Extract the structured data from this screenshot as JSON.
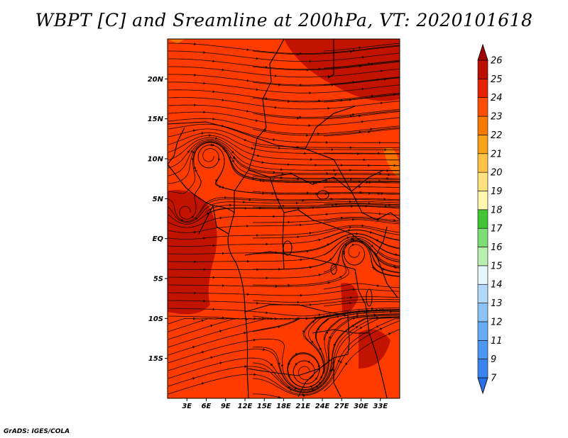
{
  "title": "WBPT [C] and Sreamline at 200hPa, VT: 2020101618",
  "footer": "GrADS: IGES/COLA",
  "map": {
    "lon_range": [
      0,
      36
    ],
    "lat_range": [
      -20,
      25
    ],
    "lat_ticks": [
      {
        "value": 20,
        "label": "20N"
      },
      {
        "value": 15,
        "label": "15N"
      },
      {
        "value": 10,
        "label": "10N"
      },
      {
        "value": 5,
        "label": "5N"
      },
      {
        "value": 0,
        "label": "EQ"
      },
      {
        "value": -5,
        "label": "5S"
      },
      {
        "value": -10,
        "label": "10S"
      },
      {
        "value": -15,
        "label": "15S"
      }
    ],
    "lon_ticks": [
      {
        "value": 3,
        "label": "3E"
      },
      {
        "value": 6,
        "label": "6E"
      },
      {
        "value": 9,
        "label": "9E"
      },
      {
        "value": 12,
        "label": "12E"
      },
      {
        "value": 15,
        "label": "15E"
      },
      {
        "value": 18,
        "label": "18E"
      },
      {
        "value": 21,
        "label": "21E"
      },
      {
        "value": 24,
        "label": "24E"
      },
      {
        "value": 27,
        "label": "27E"
      },
      {
        "value": 30,
        "label": "30E"
      },
      {
        "value": 33,
        "label": "33E"
      }
    ],
    "field_color": "#ff3b00",
    "line_color": "#1a0a00"
  },
  "colorbar": {
    "levels": [
      "7",
      "9",
      "11",
      "12",
      "13",
      "14",
      "15",
      "16",
      "17",
      "18",
      "19",
      "20",
      "21",
      "22",
      "23",
      "24",
      "25",
      "26"
    ],
    "colors": [
      "#2d6fe8",
      "#3a83ec",
      "#4d97f0",
      "#6aacf3",
      "#8cc2f6",
      "#b3d8fa",
      "#e6f6fb",
      "#b9efae",
      "#7fdd76",
      "#42c437",
      "#fff6b0",
      "#ffe27f",
      "#fcc248",
      "#f9a21b",
      "#f57a00",
      "#ff4e00",
      "#e62200",
      "#bb0f00",
      "#a00000"
    ]
  }
}
